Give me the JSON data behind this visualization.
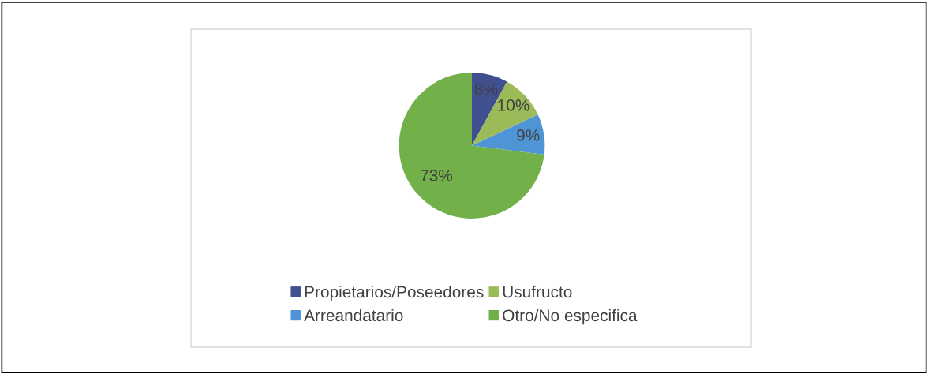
{
  "chart_data": {
    "type": "pie",
    "categories": [
      "Propietarios/Poseedores",
      "Usufructo",
      "Arreandatario",
      "Otro/No especifica"
    ],
    "values": [
      8,
      10,
      9,
      73
    ],
    "colors": [
      "#3f4f8f",
      "#9bbb59",
      "#4f95d6",
      "#72b04a"
    ],
    "value_labels": [
      "8%",
      "10%",
      "9%",
      "73%"
    ],
    "legend": "bottom"
  }
}
